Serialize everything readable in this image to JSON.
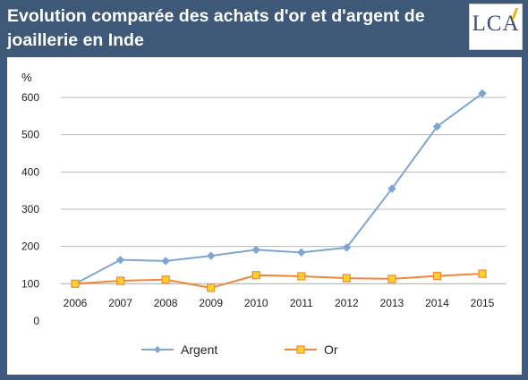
{
  "header": {
    "title": "Evolution comparée des achats d'or et d'argent de joaillerie en Inde",
    "logo_text": "LCA"
  },
  "chart_data": {
    "type": "line",
    "title": "Evolution comparée des achats d'or et d'argent de joaillerie en Inde",
    "xlabel": "",
    "ylabel": "%",
    "categories": [
      "2006",
      "2007",
      "2008",
      "2009",
      "2010",
      "2011",
      "2012",
      "2013",
      "2014",
      "2015"
    ],
    "ylim": [
      0,
      600
    ],
    "yticks": [
      0,
      100,
      200,
      300,
      400,
      500,
      600
    ],
    "grid": true,
    "legend_position": "bottom",
    "series": [
      {
        "name": "Argent",
        "color": "#7ea6d3",
        "marker": "diamond",
        "values": [
          100,
          164,
          161,
          175,
          191,
          184,
          197,
          355,
          522,
          611
        ]
      },
      {
        "name": "Or",
        "color": "#f0883a",
        "marker_fill": "#ffd22a",
        "marker": "square",
        "values": [
          100,
          108,
          111,
          89,
          123,
          120,
          115,
          113,
          121,
          127
        ]
      }
    ]
  }
}
